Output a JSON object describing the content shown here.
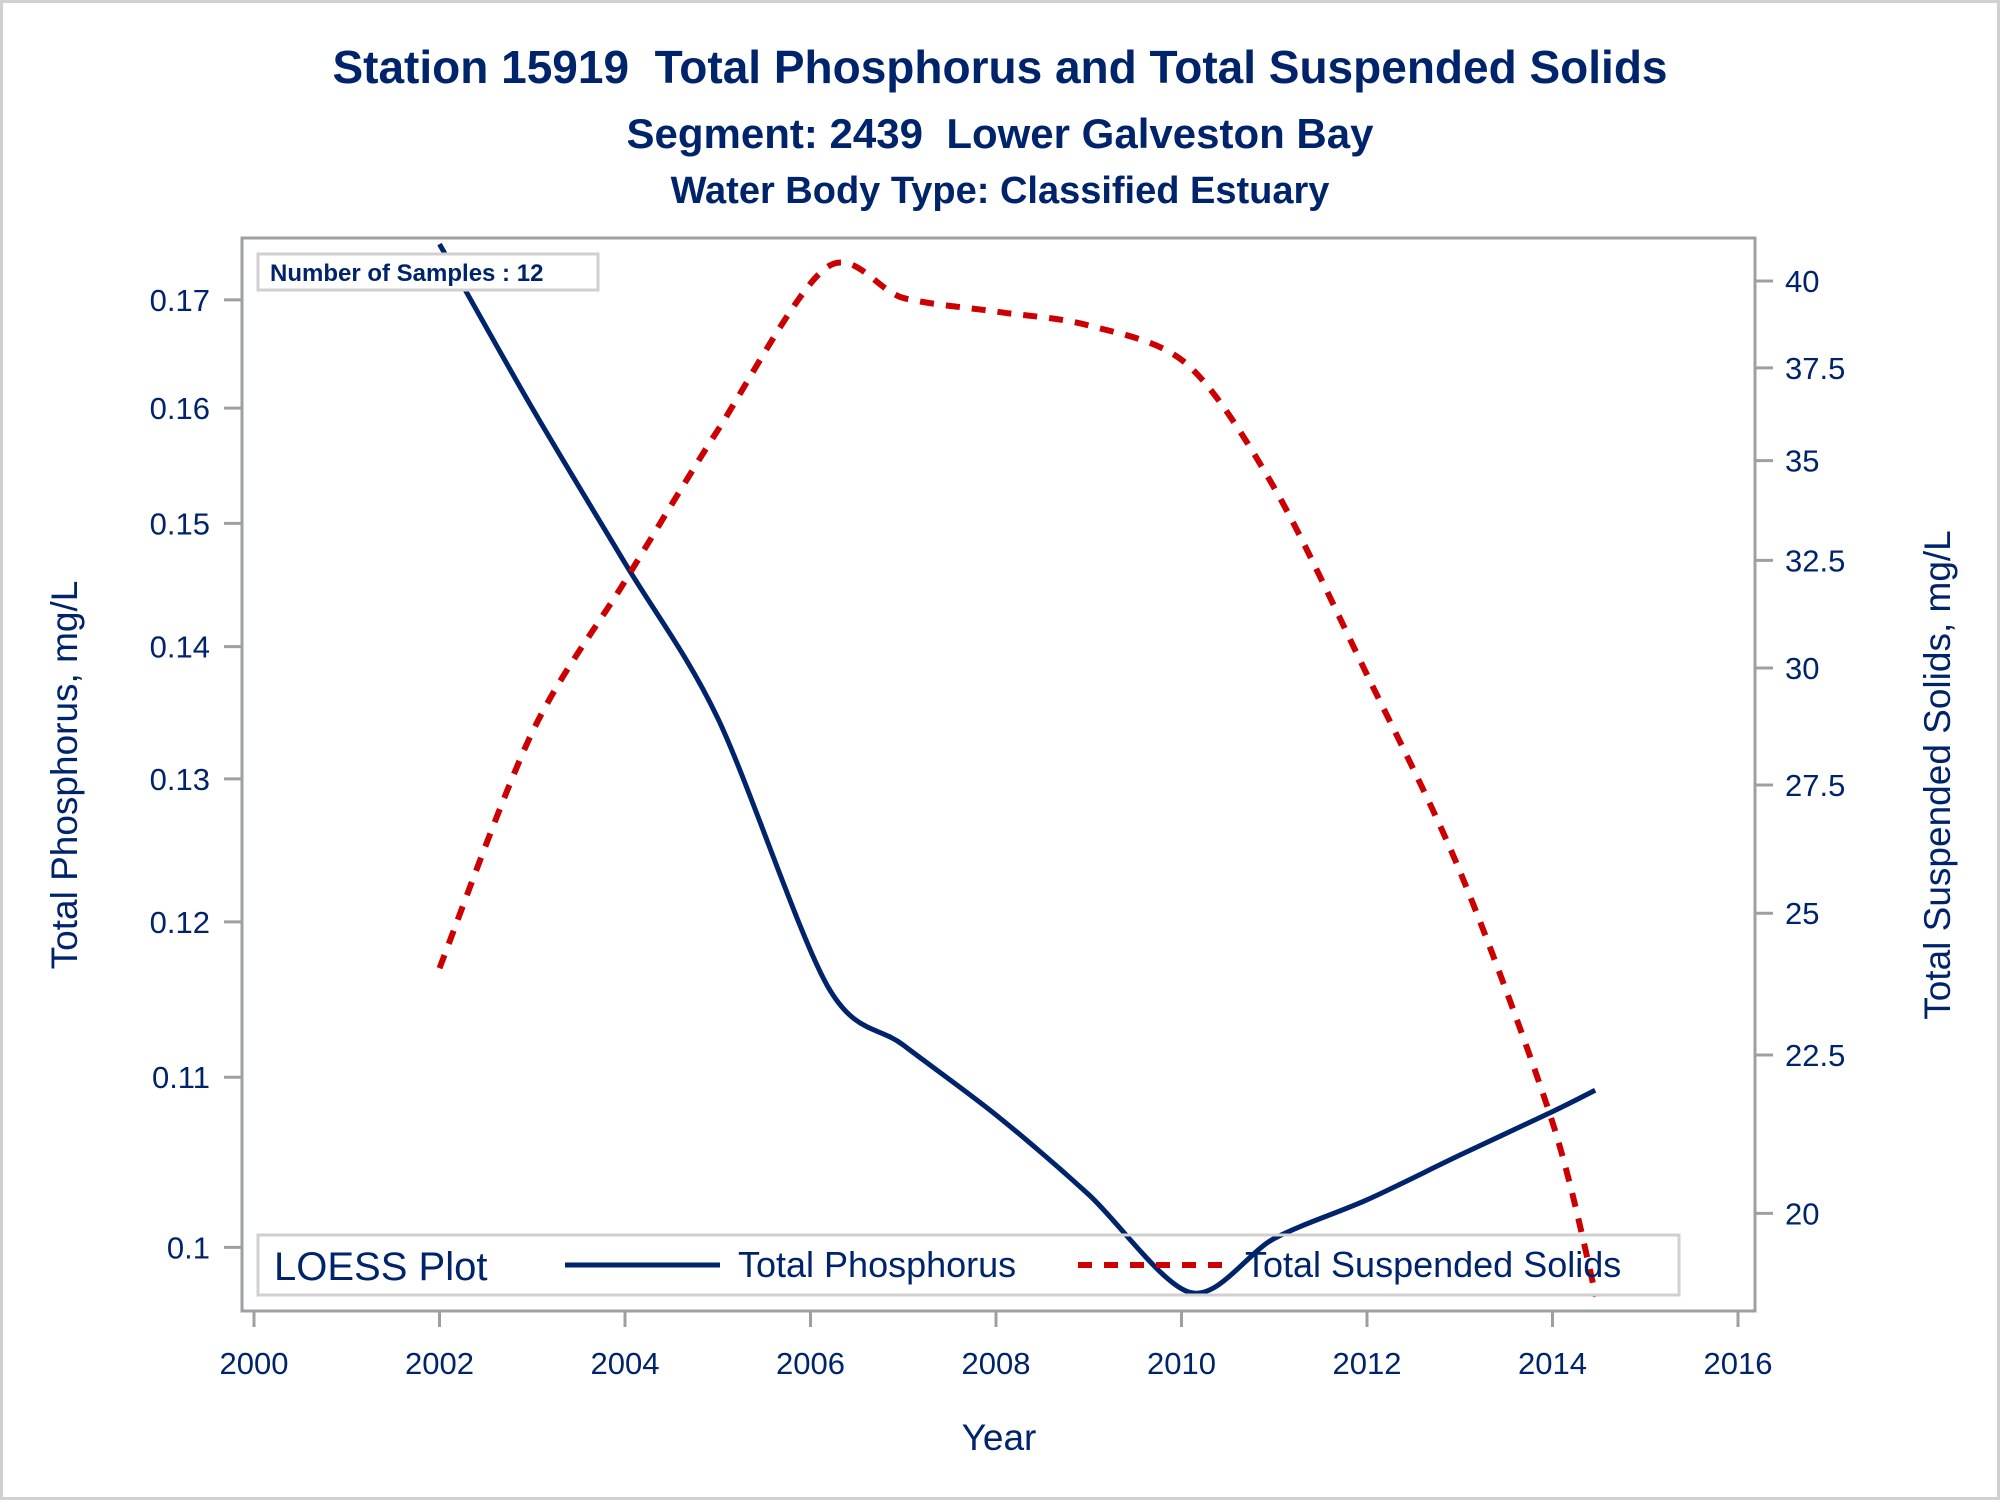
{
  "titles": {
    "line1": "Station 15919  Total Phosphorus and Total Suspended Solids",
    "line2": "Segment: 2439  Lower Galveston Bay",
    "line3": "Water Body Type: Classified Estuary"
  },
  "inset": {
    "label": "Number of Samples : 12"
  },
  "legend": {
    "title": "LOESS Plot",
    "entries": [
      {
        "label": "Total Phosphorus",
        "style": "solid",
        "color": "#00246b"
      },
      {
        "label": "Total Suspended Solids",
        "style": "dashed",
        "color": "#cc0000"
      }
    ]
  },
  "chart_data": {
    "type": "line",
    "title": "Station 15919  Total Phosphorus and Total Suspended Solids",
    "subtitle": [
      "Segment: 2439  Lower Galveston Bay",
      "Water Body Type: Classified Estuary"
    ],
    "xlabel": "Year",
    "ylabel": "Total Phosphorus, mg/L",
    "y2label": "Total Suspended Solids, mg/L",
    "xlim": [
      2000,
      2016
    ],
    "x_ticks": [
      2000,
      2002,
      2004,
      2006,
      2008,
      2010,
      2012,
      2014,
      2016
    ],
    "x_tick_labels": [
      "2000",
      "2002",
      "2004",
      "2006",
      "2008",
      "2010",
      "2012",
      "2014",
      "2016"
    ],
    "y_scale": "log",
    "ylim": [
      0.0965,
      0.176
    ],
    "y_ticks": [
      0.1,
      0.11,
      0.12,
      0.13,
      0.14,
      0.15,
      0.16,
      0.17
    ],
    "y_tick_labels": [
      "0.1",
      "0.11",
      "0.12",
      "0.13",
      "0.14",
      "0.15",
      "0.16",
      "0.17"
    ],
    "y2_scale": "log",
    "y2lim": [
      18.6,
      41.3
    ],
    "y2_ticks": [
      20,
      22.5,
      25,
      27.5,
      30,
      32.5,
      35,
      37.5,
      40
    ],
    "y2_tick_labels": [
      "20",
      "22.5",
      "25",
      "27.5",
      "30",
      "32.5",
      "35",
      "37.5",
      "40"
    ],
    "grid": false,
    "legend_position": "bottom-inside",
    "annotation": "Number of Samples : 12",
    "series": [
      {
        "name": "Total Phosphorus",
        "axis": "left",
        "color": "#00246b",
        "style": "solid",
        "x": [
          2002.0,
          2003.0,
          2004.0,
          2005.0,
          2006.18,
          2007.0,
          2008.0,
          2009.0,
          2010.1,
          2011.0,
          2012.0,
          2013.0,
          2014.0,
          2014.46
        ],
        "y": [
          0.1754,
          0.16,
          0.1467,
          0.1345,
          0.1158,
          0.112,
          0.1077,
          0.103,
          0.0975,
          0.1005,
          0.1027,
          0.1053,
          0.1079,
          0.1092
        ]
      },
      {
        "name": "Total Suspended Solids",
        "axis": "right",
        "color": "#cc0000",
        "style": "dashed",
        "x": [
          2002.0,
          2003.0,
          2004.0,
          2005.0,
          2006.17,
          2007.0,
          2008.0,
          2009.0,
          2010.06,
          2011.0,
          2012.0,
          2013.0,
          2014.0,
          2014.47
        ],
        "y": [
          24.0,
          28.6,
          32.0,
          35.8,
          40.4,
          39.5,
          39.1,
          38.7,
          37.6,
          34.3,
          29.85,
          25.8,
          21.4,
          18.8
        ]
      }
    ]
  }
}
